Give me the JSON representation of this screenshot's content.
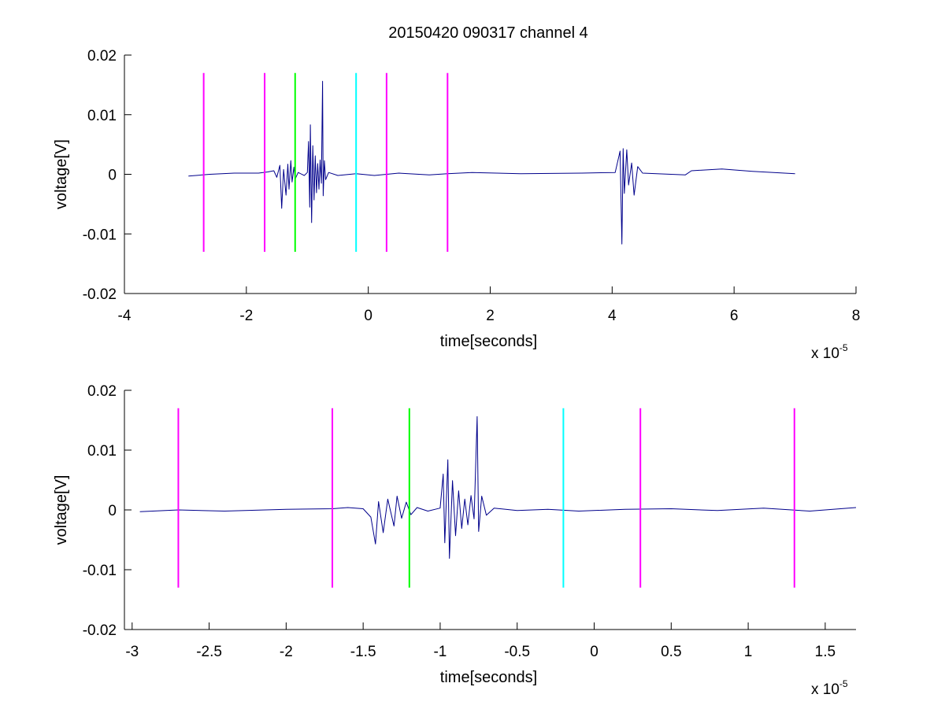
{
  "figure": {
    "title": "20150420 090317 channel 4",
    "colors": {
      "signal": "#00008B",
      "magenta_marker": "#FF00FF",
      "green_marker": "#00FF00",
      "cyan_marker": "#00FFFF",
      "axes": "#000000",
      "background": "#FFFFFF"
    }
  },
  "chart_data": [
    {
      "type": "line",
      "title": "20150420 090317 channel 4",
      "xlabel": "time[seconds]",
      "ylabel": "voltage[V]",
      "x_multiplier_base": "x 10",
      "x_multiplier_exp": "-5",
      "xlim": [
        -4e-05,
        8e-05
      ],
      "ylim": [
        -0.02,
        0.02
      ],
      "x_ticks": [
        -4e-05,
        -2e-05,
        0,
        2e-05,
        4e-05,
        6e-05,
        8e-05
      ],
      "x_tick_labels": [
        "-4",
        "-2",
        "0",
        "2",
        "4",
        "6",
        "8"
      ],
      "y_ticks": [
        -0.02,
        -0.01,
        0,
        0.01,
        0.02
      ],
      "y_tick_labels": [
        "-0.02",
        "-0.01",
        "0",
        "0.01",
        "0.02"
      ],
      "grid": false,
      "series": [
        {
          "color": "#00008B",
          "points": [
            [
              -2.95e-05,
              -0.0003
            ],
            [
              -2.6e-05,
              0.0
            ],
            [
              -2.2e-05,
              0.0002
            ],
            [
              -1.8e-05,
              0.0002
            ],
            [
              -1.65e-05,
              0.0004
            ],
            [
              -1.55e-05,
              0.0006
            ],
            [
              -1.5e-05,
              -0.0005
            ],
            [
              -1.45e-05,
              0.0015
            ],
            [
              -1.42e-05,
              -0.0057
            ],
            [
              -1.39e-05,
              0.0008
            ],
            [
              -1.35e-05,
              -0.0035
            ],
            [
              -1.32e-05,
              0.0017
            ],
            [
              -1.3e-05,
              -0.0025
            ],
            [
              -1.27e-05,
              0.0023
            ],
            [
              -1.25e-05,
              -0.0013
            ],
            [
              -1.22e-05,
              0.0012
            ],
            [
              -1.2e-05,
              -0.0008
            ],
            [
              -1.15e-05,
              0.0003
            ],
            [
              -1.05e-05,
              -0.0002
            ],
            [
              -1e-05,
              0.0003
            ],
            [
              -9.8e-06,
              0.0055
            ],
            [
              -9.6e-06,
              -0.0055
            ],
            [
              -9.5e-06,
              0.0083
            ],
            [
              -9.3e-06,
              -0.0081
            ],
            [
              -9.1e-06,
              0.0048
            ],
            [
              -8.9e-06,
              -0.0043
            ],
            [
              -8.7e-06,
              0.0031
            ],
            [
              -8.5e-06,
              -0.0031
            ],
            [
              -8.3e-06,
              0.0018
            ],
            [
              -8.1e-06,
              -0.0025
            ],
            [
              -7.9e-06,
              0.0024
            ],
            [
              -7.7e-06,
              -0.0015
            ],
            [
              -7.5e-06,
              0.0156
            ],
            [
              -7.4e-06,
              -0.0036
            ],
            [
              -7.2e-06,
              0.0023
            ],
            [
              -7e-06,
              -0.0009
            ],
            [
              -6.5e-06,
              0.0003
            ],
            [
              -5e-06,
              -0.0002
            ],
            [
              -2e-06,
              0.0001
            ],
            [
              1e-06,
              -0.0002
            ],
            [
              5e-06,
              0.0002
            ],
            [
              1e-05,
              -0.0001
            ],
            [
              1.3e-05,
              0.0001
            ],
            [
              1.7e-05,
              0.0003
            ],
            [
              2.5e-05,
              0.0001
            ],
            [
              3.5e-05,
              0.0002
            ],
            [
              4.05e-05,
              0.0003
            ],
            [
              4.13e-05,
              0.0039
            ],
            [
              4.16e-05,
              -0.0117
            ],
            [
              4.18e-05,
              0.0043
            ],
            [
              4.2e-05,
              -0.0032
            ],
            [
              4.24e-05,
              0.0041
            ],
            [
              4.27e-05,
              -0.0018
            ],
            [
              4.32e-05,
              0.0019
            ],
            [
              4.36e-05,
              -0.0035
            ],
            [
              4.42e-05,
              0.0013
            ],
            [
              4.5e-05,
              0.0002
            ],
            [
              5.2e-05,
              -0.0001
            ],
            [
              5.3e-05,
              0.0006
            ],
            [
              5.8e-05,
              0.0009
            ],
            [
              6.3e-05,
              0.0005
            ],
            [
              7e-05,
              0.0001
            ]
          ]
        }
      ],
      "vertical_markers": [
        {
          "x": -2.7e-05,
          "y_range": [
            -0.013,
            0.017
          ],
          "color": "#FF00FF"
        },
        {
          "x": -1.7e-05,
          "y_range": [
            -0.013,
            0.017
          ],
          "color": "#FF00FF"
        },
        {
          "x": -1.2e-05,
          "y_range": [
            -0.013,
            0.017
          ],
          "color": "#00FF00"
        },
        {
          "x": -2e-06,
          "y_range": [
            -0.013,
            0.017
          ],
          "color": "#00FFFF"
        },
        {
          "x": 3e-06,
          "y_range": [
            -0.013,
            0.017
          ],
          "color": "#FF00FF"
        },
        {
          "x": 1.3e-05,
          "y_range": [
            -0.013,
            0.017
          ],
          "color": "#FF00FF"
        }
      ]
    },
    {
      "type": "line",
      "title": "",
      "xlabel": "time[seconds]",
      "ylabel": "voltage[V]",
      "x_multiplier_base": "x 10",
      "x_multiplier_exp": "-5",
      "xlim": [
        -3.05e-05,
        1.7e-05
      ],
      "ylim": [
        -0.02,
        0.02
      ],
      "x_ticks": [
        -3e-05,
        -2.5e-05,
        -2e-05,
        -1.5e-05,
        -1e-05,
        -5e-06,
        0,
        5e-06,
        1e-05,
        1.5e-05
      ],
      "x_tick_labels": [
        "-3",
        "-2.5",
        "-2",
        "-1.5",
        "-1",
        "-0.5",
        "0",
        "0.5",
        "1",
        "1.5"
      ],
      "y_ticks": [
        -0.02,
        -0.01,
        0,
        0.01,
        0.02
      ],
      "y_tick_labels": [
        "-0.02",
        "-0.01",
        "0",
        "0.01",
        "0.02"
      ],
      "grid": false,
      "series": [
        {
          "color": "#00008B",
          "points": [
            [
              -2.95e-05,
              -0.0003
            ],
            [
              -2.7e-05,
              0.0
            ],
            [
              -2.4e-05,
              -0.0002
            ],
            [
              -2e-05,
              0.0001
            ],
            [
              -1.7e-05,
              0.0002
            ],
            [
              -1.6e-05,
              0.0004
            ],
            [
              -1.5e-05,
              0.0002
            ],
            [
              -1.45e-05,
              -0.0012
            ],
            [
              -1.42e-05,
              -0.0057
            ],
            [
              -1.4e-05,
              0.0014
            ],
            [
              -1.37e-05,
              -0.0038
            ],
            [
              -1.34e-05,
              0.0018
            ],
            [
              -1.3e-05,
              -0.0027
            ],
            [
              -1.28e-05,
              0.0023
            ],
            [
              -1.25e-05,
              -0.0014
            ],
            [
              -1.22e-05,
              0.0013
            ],
            [
              -1.19e-05,
              -0.0008
            ],
            [
              -1.15e-05,
              0.0004
            ],
            [
              -1.08e-05,
              -0.0002
            ],
            [
              -1e-05,
              0.0003
            ],
            [
              -9.8e-06,
              0.006
            ],
            [
              -9.7e-06,
              -0.0055
            ],
            [
              -9.5e-06,
              0.0084
            ],
            [
              -9.4e-06,
              -0.0081
            ],
            [
              -9.2e-06,
              0.0049
            ],
            [
              -9e-06,
              -0.0043
            ],
            [
              -8.8e-06,
              0.0032
            ],
            [
              -8.6e-06,
              -0.0031
            ],
            [
              -8.4e-06,
              0.0018
            ],
            [
              -8.2e-06,
              -0.0025
            ],
            [
              -8e-06,
              0.0024
            ],
            [
              -7.8e-06,
              -0.0015
            ],
            [
              -7.6e-06,
              0.0156
            ],
            [
              -7.5e-06,
              -0.0036
            ],
            [
              -7.3e-06,
              0.0023
            ],
            [
              -7e-06,
              -0.0009
            ],
            [
              -6.5e-06,
              0.0003
            ],
            [
              -5e-06,
              -0.0001
            ],
            [
              -3e-06,
              0.0001
            ],
            [
              -1e-06,
              -0.0002
            ],
            [
              2e-06,
              0.0001
            ],
            [
              5e-06,
              0.0002
            ],
            [
              8e-06,
              -0.0001
            ],
            [
              1.1e-05,
              0.0003
            ],
            [
              1.4e-05,
              -0.0002
            ],
            [
              1.7e-05,
              0.0004
            ]
          ]
        }
      ],
      "vertical_markers": [
        {
          "x": -2.7e-05,
          "y_range": [
            -0.013,
            0.017
          ],
          "color": "#FF00FF"
        },
        {
          "x": -1.7e-05,
          "y_range": [
            -0.013,
            0.017
          ],
          "color": "#FF00FF"
        },
        {
          "x": -1.2e-05,
          "y_range": [
            -0.013,
            0.017
          ],
          "color": "#00FF00"
        },
        {
          "x": -2e-06,
          "y_range": [
            -0.013,
            0.017
          ],
          "color": "#00FFFF"
        },
        {
          "x": 3e-06,
          "y_range": [
            -0.013,
            0.017
          ],
          "color": "#FF00FF"
        },
        {
          "x": 1.3e-05,
          "y_range": [
            -0.013,
            0.017
          ],
          "color": "#FF00FF"
        }
      ]
    }
  ]
}
